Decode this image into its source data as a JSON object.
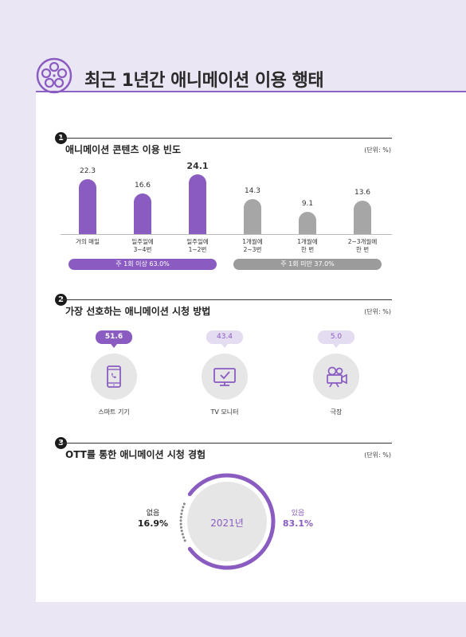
{
  "page": {
    "title": "최근 1년간 애니메이션 이용 행태"
  },
  "sections": [
    {
      "num": "1",
      "title": "애니메이션 콘텐츠 이용 빈도",
      "unit": "(단위: %)"
    },
    {
      "num": "2",
      "title": "가장 선호하는 애니메이션 시청 방법",
      "unit": "(단위: %)"
    },
    {
      "num": "3",
      "title": "OTT를 통한 애니메이션 시청 경험",
      "unit": "(단위: %)"
    }
  ],
  "groups": [
    {
      "label": "주 1회 이상 63.0%",
      "color": "#8a5cc1"
    },
    {
      "label": "주 1회 미만 37.0%",
      "color": "#9b9b9b"
    }
  ],
  "method": [
    {
      "label": "스마트 기기",
      "value": "51.6",
      "icon": "smartphone-icon"
    },
    {
      "label": "TV 모니터",
      "value": "43.4",
      "icon": "tv-monitor-icon"
    },
    {
      "label": "극장",
      "value": "5.0",
      "icon": "movie-camera-icon"
    }
  ],
  "ott": {
    "center": "2021년",
    "no_label": "없음",
    "no_value": "16.9%",
    "yes_label": "있음",
    "yes_value": "83.1%"
  },
  "colors": {
    "purple": "#8a5cc1",
    "gray": "#a6a6a6",
    "light_purple": "#e4dcf1",
    "bg": "#ebe6f3"
  },
  "chart_data": [
    {
      "type": "bar",
      "categories": [
        "거의 매일",
        "일주일에\n3~4번",
        "일주일에\n1~2번",
        "1개월에\n2~3번",
        "1개월에\n한 번",
        "2~3개월에\n한 번"
      ],
      "values": [
        22.3,
        16.6,
        24.1,
        14.3,
        9.1,
        13.6
      ],
      "value_labels": [
        "22.3",
        "16.6",
        "24.1",
        "14.3",
        "9.1",
        "13.6"
      ],
      "highlight_index": 2,
      "colors": [
        "#8a5cc1",
        "#8a5cc1",
        "#8a5cc1",
        "#a6a6a6",
        "#a6a6a6",
        "#a6a6a6"
      ],
      "title": "애니메이션 콘텐츠 이용 빈도",
      "ylabel": "",
      "xlabel": ""
    },
    {
      "type": "pie",
      "categories": [
        "있음",
        "없음"
      ],
      "values": [
        83.1,
        16.9
      ],
      "title": "OTT를 통한 애니메이션 시청 경험"
    }
  ]
}
